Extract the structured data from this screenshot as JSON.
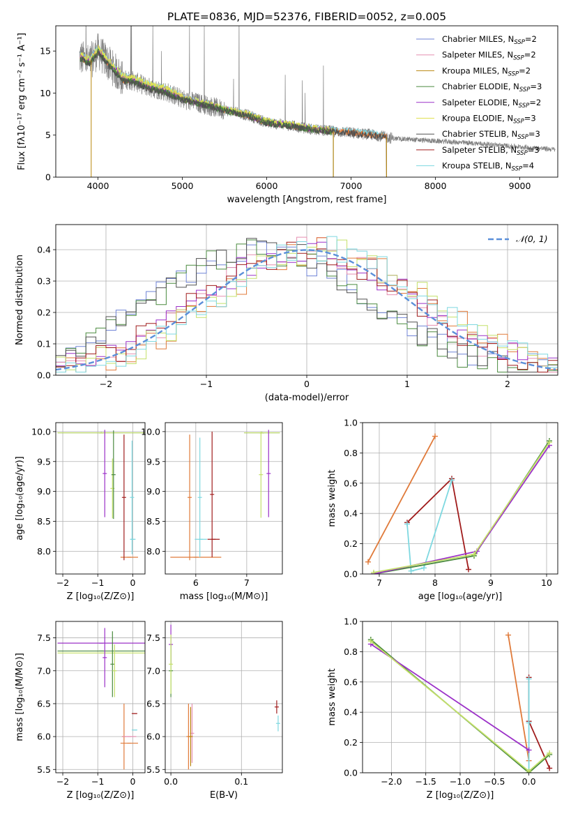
{
  "figure_title": "PLATE=0836, MJD=52376, FIBERID=0052, z=0.005",
  "colors": {
    "chabrier_miles": "#6f83d6",
    "salpeter_miles": "#e58fb0",
    "kroupa_miles": "#b8860b",
    "chabrier_elodie": "#4a8a3f",
    "salpeter_elodie": "#9b30c8",
    "kroupa_elodie": "#e0e050",
    "chabrier_stelib": "#505050",
    "salpeter_stelib": "#a01c1c",
    "kroupa_stelib": "#7ed8e0",
    "orange": "#e07a3a",
    "gray_data": "#808080",
    "normal_curve": "#5b8fd9",
    "lightgreen": "#c4e06a",
    "grid": "#b0b0b0"
  },
  "chart_data": [
    {
      "id": "spectrum",
      "type": "line",
      "xlabel": "wavelength [Angstrom, rest frame]",
      "ylabel": "Flux [fλ10⁻¹⁷ erg cm⁻² s⁻¹ A⁻¹]",
      "xlim": [
        3500,
        9450
      ],
      "ylim": [
        0,
        18
      ],
      "xticks": [
        4000,
        5000,
        6000,
        7000,
        8000,
        9000
      ],
      "yticks": [
        0,
        5,
        10,
        15
      ],
      "grid": false,
      "legend_position": "top-right",
      "legend": [
        {
          "name": "Chabrier MILES, N",
          "sub": "SSP",
          "suffix": "=2",
          "color": "#6f83d6"
        },
        {
          "name": "Salpeter MILES, N",
          "sub": "SSP",
          "suffix": "=2",
          "color": "#e58fb0"
        },
        {
          "name": "Kroupa MILES, N",
          "sub": "SSP",
          "suffix": "=2",
          "color": "#b8860b"
        },
        {
          "name": "Chabrier ELODIE, N",
          "sub": "SSP",
          "suffix": "=3",
          "color": "#4a8a3f"
        },
        {
          "name": "Salpeter ELODIE, N",
          "sub": "SSP",
          "suffix": "=2",
          "color": "#9b30c8"
        },
        {
          "name": "Kroupa ELODIE, N",
          "sub": "SSP",
          "suffix": "=3",
          "color": "#e0e050"
        },
        {
          "name": "Chabrier STELIB, N",
          "sub": "SSP",
          "suffix": "=3",
          "color": "#505050"
        },
        {
          "name": "Salpeter STELIB, N",
          "sub": "SSP",
          "suffix": "=3",
          "color": "#a01c1c"
        },
        {
          "name": "Kroupa STELIB, N",
          "sub": "SSP",
          "suffix": "=4",
          "color": "#7ed8e0"
        }
      ],
      "continuum": {
        "x": [
          3800,
          3900,
          4000,
          4100,
          4200,
          4300,
          4400,
          4600,
          4800,
          5000,
          5200,
          5500,
          5800,
          6000,
          6300,
          6600,
          7000,
          7300,
          7500,
          8000,
          8500,
          9000,
          9400
        ],
        "y": [
          14.2,
          13.6,
          15.0,
          13.8,
          12.7,
          11.6,
          11.5,
          10.7,
          10.2,
          9.3,
          8.8,
          8.0,
          7.3,
          6.5,
          6.1,
          5.6,
          5.3,
          5.0,
          4.6,
          4.3,
          4.0,
          3.6,
          3.3
        ]
      },
      "model_cut_x": [
        3920,
        6790,
        7420
      ]
    },
    {
      "id": "residual_histogram",
      "type": "line",
      "xlabel": "(data-model)/error",
      "ylabel": "Normed distribution",
      "xlim": [
        -2.5,
        2.5
      ],
      "ylim": [
        0,
        0.48
      ],
      "xticks": [
        -2,
        -1,
        0,
        1,
        2
      ],
      "yticks": [
        0.0,
        0.1,
        0.2,
        0.3,
        0.4
      ],
      "grid": true,
      "legend_position": "top-right",
      "normal_label": "𝒩(0, 1)",
      "bins": 50
    },
    {
      "id": "age_vs_Z",
      "type": "scatter",
      "xlabel": "Z [log₁₀(Z/Z⊙)]",
      "ylabel": "age  [log₁₀(age/yr)]",
      "xlim": [
        -2.2,
        0.35
      ],
      "ylim": [
        7.62,
        10.15
      ],
      "xticks": [
        -2,
        -1,
        0
      ],
      "yticks": [
        8.0,
        8.5,
        9.0,
        9.5,
        10.0
      ],
      "grid": true,
      "errorbars": [
        {
          "color": "#4a8a3f",
          "x": -0.9,
          "xerr": 1.25,
          "y": 9.98,
          "yerr": 0.01
        },
        {
          "color": "#c4e06a",
          "x": -0.9,
          "xerr": 1.25,
          "y": 9.98,
          "yerr": 0.01
        },
        {
          "color": "#9b30c8",
          "x": -0.8,
          "xerr": 0.0,
          "y": 9.3,
          "yerr": 0.73
        },
        {
          "color": "#c4e06a",
          "x": -0.58,
          "xerr": 0.0,
          "y": 9.05,
          "yerr": 0.5
        },
        {
          "color": "#4a8a3f",
          "x": -0.55,
          "xerr": 0.0,
          "y": 9.28,
          "yerr": 0.74
        },
        {
          "color": "#e07a3a",
          "x": -0.1,
          "xerr": 0.25,
          "y": 7.9,
          "yerr": 0.0
        },
        {
          "color": "#a01c1c",
          "x": -0.25,
          "xerr": 0.0,
          "y": 8.9,
          "yerr": 1.05
        },
        {
          "color": "#7ed8e0",
          "x": 0.0,
          "xerr": 0.08,
          "y": 8.2,
          "yerr": 0.0
        },
        {
          "color": "#7ed8e0",
          "x": -0.02,
          "xerr": 0.0,
          "y": 8.9,
          "yerr": 0.95
        }
      ]
    },
    {
      "id": "age_vs_mass",
      "type": "scatter",
      "xlabel": "mass [log₁₀(M/M⊙)]",
      "ylabel": "",
      "xlim": [
        5.4,
        7.7
      ],
      "ylim": [
        7.62,
        10.15
      ],
      "xticks": [
        6,
        7
      ],
      "yticks": [
        8.0,
        8.5,
        9.0,
        9.5,
        10.0
      ],
      "grid": true,
      "errorbars": [
        {
          "color": "#4a8a3f",
          "x": 7.3,
          "xerr": 0.35,
          "y": 9.98,
          "yerr": 0.01
        },
        {
          "color": "#c4e06a",
          "x": 7.3,
          "xerr": 0.35,
          "y": 9.98,
          "yerr": 0.01
        },
        {
          "color": "#9b30c8",
          "x": 7.43,
          "xerr": 0.0,
          "y": 9.3,
          "yerr": 0.73
        },
        {
          "color": "#c4e06a",
          "x": 7.28,
          "xerr": 0.0,
          "y": 9.28,
          "yerr": 0.72
        },
        {
          "color": "#e07a3a",
          "x": 6.0,
          "xerr": 0.5,
          "y": 7.9,
          "yerr": 0.0
        },
        {
          "color": "#e07a3a",
          "x": 5.88,
          "xerr": 0.0,
          "y": 8.9,
          "yerr": 1.05
        },
        {
          "color": "#a01c1c",
          "x": 6.35,
          "xerr": 0.12,
          "y": 8.2,
          "yerr": 0.0
        },
        {
          "color": "#a01c1c",
          "x": 6.32,
          "xerr": 0.0,
          "y": 8.95,
          "yerr": 1.05
        },
        {
          "color": "#7ed8e0",
          "x": 6.1,
          "xerr": 0.12,
          "y": 8.2,
          "yerr": 0.0
        },
        {
          "color": "#7ed8e0",
          "x": 6.08,
          "xerr": 0.0,
          "y": 8.9,
          "yerr": 1.0
        }
      ]
    },
    {
      "id": "massweight_vs_age",
      "type": "line",
      "xlabel": "age  [log₁₀(age/yr)]",
      "ylabel": "mass weight",
      "xlim": [
        6.7,
        10.2
      ],
      "ylim": [
        0,
        1.0
      ],
      "xticks": [
        7,
        8,
        9,
        10
      ],
      "yticks": [
        0.0,
        0.2,
        0.4,
        0.6,
        0.8,
        1.0
      ],
      "grid": true,
      "series": [
        {
          "color": "#e07a3a",
          "x": [
            6.8,
            8.0
          ],
          "y": [
            0.08,
            0.91
          ]
        },
        {
          "color": "#a01c1c",
          "x": [
            7.5,
            8.3,
            8.6
          ],
          "y": [
            0.34,
            0.63,
            0.03
          ]
        },
        {
          "color": "#7ed8e0",
          "x": [
            7.5,
            7.57,
            7.8,
            8.3
          ],
          "y": [
            0.33,
            0.02,
            0.04,
            0.62
          ]
        },
        {
          "color": "#4a8a3f",
          "x": [
            6.9,
            8.7,
            10.05
          ],
          "y": [
            0.0,
            0.12,
            0.88
          ]
        },
        {
          "color": "#9b30c8",
          "x": [
            6.9,
            8.75,
            10.05
          ],
          "y": [
            0.0,
            0.15,
            0.85
          ]
        },
        {
          "color": "#c4e06a",
          "x": [
            6.9,
            8.7,
            10.05
          ],
          "y": [
            0.01,
            0.13,
            0.87
          ]
        }
      ]
    },
    {
      "id": "mass_vs_Z",
      "type": "scatter",
      "xlabel": "Z [log₁₀(Z/Z⊙)]",
      "ylabel": "mass [log₁₀(M/M⊙)]",
      "xlim": [
        -2.2,
        0.35
      ],
      "ylim": [
        5.45,
        7.75
      ],
      "xticks": [
        -2,
        -1,
        0
      ],
      "yticks": [
        5.5,
        6.0,
        6.5,
        7.0,
        7.5
      ],
      "grid": true,
      "errorbars": [
        {
          "color": "#9b30c8",
          "x": -0.9,
          "xerr": 1.25,
          "y": 7.42,
          "yerr": 0.0
        },
        {
          "color": "#4a8a3f",
          "x": -0.9,
          "xerr": 1.25,
          "y": 7.3,
          "yerr": 0.0
        },
        {
          "color": "#c4e06a",
          "x": -0.9,
          "xerr": 1.25,
          "y": 7.27,
          "yerr": 0.0
        },
        {
          "color": "#9b30c8",
          "x": -0.8,
          "xerr": 0.0,
          "y": 7.2,
          "yerr": 0.45
        },
        {
          "color": "#4a8a3f",
          "x": -0.58,
          "xerr": 0.0,
          "y": 7.1,
          "yerr": 0.5
        },
        {
          "color": "#c4e06a",
          "x": -0.52,
          "xerr": 0.0,
          "y": 7.0,
          "yerr": 0.4
        },
        {
          "color": "#e07a3a",
          "x": -0.25,
          "xerr": 0.0,
          "y": 6.0,
          "yerr": 0.5
        },
        {
          "color": "#e07a3a",
          "x": -0.1,
          "xerr": 0.25,
          "y": 5.9,
          "yerr": 0.0
        },
        {
          "color": "#e58fb0",
          "x": -0.1,
          "xerr": 0.2,
          "y": 6.0,
          "yerr": 0.0
        },
        {
          "color": "#a01c1c",
          "x": 0.05,
          "xerr": 0.08,
          "y": 6.35,
          "yerr": 0.0
        },
        {
          "color": "#7ed8e0",
          "x": 0.05,
          "xerr": 0.08,
          "y": 6.1,
          "yerr": 0.0
        }
      ]
    },
    {
      "id": "mass_vs_EBV",
      "type": "scatter",
      "xlabel": "E(B-V)",
      "ylabel": "",
      "xlim": [
        -0.008,
        0.158
      ],
      "ylim": [
        5.45,
        7.75
      ],
      "xticks": [
        0.0,
        0.1
      ],
      "yticks": [
        5.5,
        6.0,
        6.5,
        7.0,
        7.5
      ],
      "grid": true,
      "errorbars": [
        {
          "color": "#9b30c8",
          "x": 0.0,
          "y": 7.4,
          "yerr": 0.3
        },
        {
          "color": "#4a8a3f",
          "x": 0.0,
          "y": 7.0,
          "yerr": 0.4
        },
        {
          "color": "#c4e06a",
          "x": 0.0,
          "y": 7.1,
          "yerr": 0.45
        },
        {
          "color": "#e07a3a",
          "x": 0.025,
          "y": 6.0,
          "yerr": 0.5
        },
        {
          "color": "#e58fb0",
          "x": 0.03,
          "y": 6.05,
          "yerr": 0.45
        },
        {
          "color": "#b8860b",
          "x": 0.028,
          "y": 6.0,
          "yerr": 0.45
        },
        {
          "color": "#a01c1c",
          "x": 0.15,
          "y": 6.45,
          "yerr": 0.1
        },
        {
          "color": "#7ed8e0",
          "x": 0.152,
          "y": 6.2,
          "yerr": 0.12
        }
      ]
    },
    {
      "id": "massweight_vs_Z",
      "type": "line",
      "xlabel": "Z [log₁₀(Z/Z⊙)]",
      "ylabel": "mass weight",
      "xlim": [
        -2.42,
        0.42
      ],
      "ylim": [
        0,
        1.0
      ],
      "xticks": [
        -2.0,
        -1.5,
        -1.0,
        -0.5,
        0.0
      ],
      "yticks": [
        0.0,
        0.2,
        0.4,
        0.6,
        0.8,
        1.0
      ],
      "grid": true,
      "series": [
        {
          "color": "#e07a3a",
          "x": [
            -0.3,
            0.0
          ],
          "y": [
            0.91,
            0.08
          ]
        },
        {
          "color": "#a01c1c",
          "x": [
            0.0,
            0.0,
            0.3
          ],
          "y": [
            0.63,
            0.34,
            0.03
          ]
        },
        {
          "color": "#7ed8e0",
          "x": [
            0.0,
            0.0,
            0.0
          ],
          "y": [
            0.62,
            0.33,
            0.02
          ]
        },
        {
          "color": "#4a8a3f",
          "x": [
            -2.3,
            0.0,
            0.3
          ],
          "y": [
            0.88,
            0.0,
            0.12
          ]
        },
        {
          "color": "#9b30c8",
          "x": [
            -2.3,
            0.0
          ],
          "y": [
            0.85,
            0.15
          ]
        },
        {
          "color": "#c4e06a",
          "x": [
            -2.3,
            0.0,
            0.3
          ],
          "y": [
            0.87,
            0.01,
            0.13
          ]
        }
      ]
    }
  ]
}
